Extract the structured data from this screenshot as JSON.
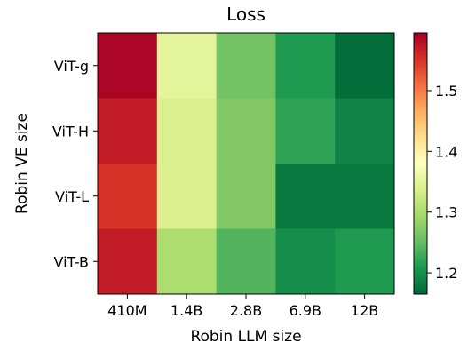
{
  "chart_data": {
    "type": "heatmap",
    "title": "Loss",
    "xlabel": "Robin LLM size",
    "ylabel": "Robin VE size",
    "x_categories": [
      "410M",
      "1.4B",
      "2.8B",
      "6.9B",
      "12B"
    ],
    "y_categories": [
      "ViT-g",
      "ViT-H",
      "ViT-L",
      "ViT-B"
    ],
    "values": [
      [
        1.59,
        1.35,
        1.26,
        1.21,
        1.17
      ],
      [
        1.57,
        1.34,
        1.27,
        1.22,
        1.19
      ],
      [
        1.55,
        1.34,
        1.27,
        1.18,
        1.18
      ],
      [
        1.57,
        1.3,
        1.24,
        1.2,
        1.21
      ]
    ],
    "colormap": "RdYlGn_r",
    "vmin": 1.165,
    "vmax": 1.595,
    "colorbar_ticks": [
      1.2,
      1.3,
      1.4,
      1.5
    ],
    "colorbar_tick_labels": [
      "1.2",
      "1.3",
      "1.4",
      "1.5"
    ]
  }
}
